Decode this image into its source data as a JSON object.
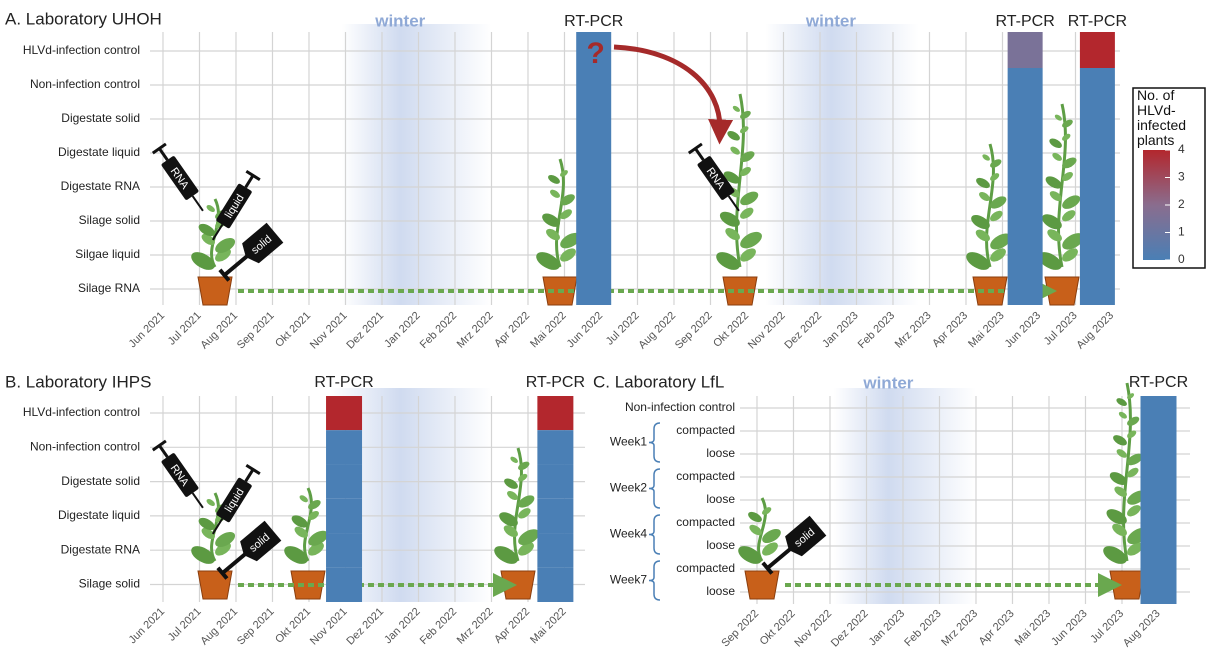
{
  "chart_data": [
    {
      "type": "heatmap",
      "title": "A. Laboratory UHOH",
      "categories": [
        "Jun 2021",
        "Jul 2021",
        "Aug 2021",
        "Sep 2021",
        "Okt 2021",
        "Nov 2021",
        "Dez 2021",
        "Jan 2022",
        "Feb 2022",
        "Mrz 2022",
        "Apr 2022",
        "Mai 2022",
        "Jun 2022",
        "Jul 2022",
        "Aug 2022",
        "Sep 2022",
        "Okt 2022",
        "Nov 2022",
        "Dez 2022",
        "Jan 2023",
        "Feb 2023",
        "Mrz 2023",
        "Apr 2023",
        "Mai 2023",
        "Jun 2023",
        "Jul 2023",
        "Aug 2023"
      ],
      "rows": [
        "HLVd-infection control",
        "Non-infection control",
        "Digestate solid",
        "Digestate liquid",
        "Digestate RNA",
        "Silage solid",
        "Silgae liquid",
        "Silage RNA"
      ],
      "winter": [
        "winter",
        "winter"
      ],
      "tools": [
        "RNA",
        "liquid",
        "solid",
        "RNA"
      ],
      "columns": [
        {
          "label": "RT-PCR",
          "note": "?",
          "values": [
            0,
            0,
            0,
            0,
            0,
            0,
            0,
            0
          ]
        },
        {
          "label": "RT-PCR",
          "values": [
            1.5,
            0,
            0,
            0,
            0,
            0,
            0,
            0
          ]
        },
        {
          "label": "RT-PCR",
          "values": [
            4,
            0,
            0,
            0,
            0,
            0,
            0,
            0
          ]
        }
      ],
      "legend": {
        "title": "No. of HLVd-infected plants",
        "lim": [
          0,
          4
        ],
        "ticks": [
          0,
          1,
          2,
          3,
          4
        ],
        "colors": [
          "#4a7fb5",
          "#8a6d8e",
          "#b3272d"
        ]
      }
    },
    {
      "type": "heatmap",
      "title": "B. Laboratory IHPS",
      "categories": [
        "Jun 2021",
        "Jul 2021",
        "Aug 2021",
        "Sep 2021",
        "Okt 2021",
        "Nov 2021",
        "Dez 2021",
        "Jan 2022",
        "Feb 2022",
        "Mrz 2022",
        "Apr 2022",
        "Mai 2022"
      ],
      "rows": [
        "HLVd-infection control",
        "Non-infection control",
        "Digestate solid",
        "Digestate liquid",
        "Digestate RNA",
        "Silage solid"
      ],
      "tools": [
        "RNA",
        "liquid",
        "solid"
      ],
      "columns": [
        {
          "label": "RT-PCR",
          "values": [
            4,
            0,
            0,
            0,
            0,
            0
          ]
        },
        {
          "label": "RT-PCR",
          "values": [
            4,
            0,
            0,
            0,
            0,
            0
          ]
        }
      ]
    },
    {
      "type": "heatmap",
      "title": "C. Laboratory LfL",
      "categories": [
        "Sep 2022",
        "Okt 2022",
        "Nov 2022",
        "Dez 2022",
        "Jan 2023",
        "Feb 2023",
        "Mrz 2023",
        "Apr 2023",
        "Mai 2023",
        "Jun 2023",
        "Jul 2023",
        "Aug 2023"
      ],
      "rows": [
        "Non-infection control"
      ],
      "groups": [
        {
          "name": "Week1",
          "rows": [
            "compacted",
            "loose"
          ]
        },
        {
          "name": "Week2",
          "rows": [
            "compacted",
            "loose"
          ]
        },
        {
          "name": "Week4",
          "rows": [
            "compacted",
            "loose"
          ]
        },
        {
          "name": "Week7",
          "rows": [
            "compacted",
            "loose"
          ]
        }
      ],
      "winter": [
        "winter"
      ],
      "tools": [
        "solid"
      ],
      "columns": [
        {
          "label": "RT-PCR",
          "values": [
            0,
            0,
            0,
            0,
            0,
            0,
            0,
            0,
            0
          ]
        }
      ]
    }
  ]
}
